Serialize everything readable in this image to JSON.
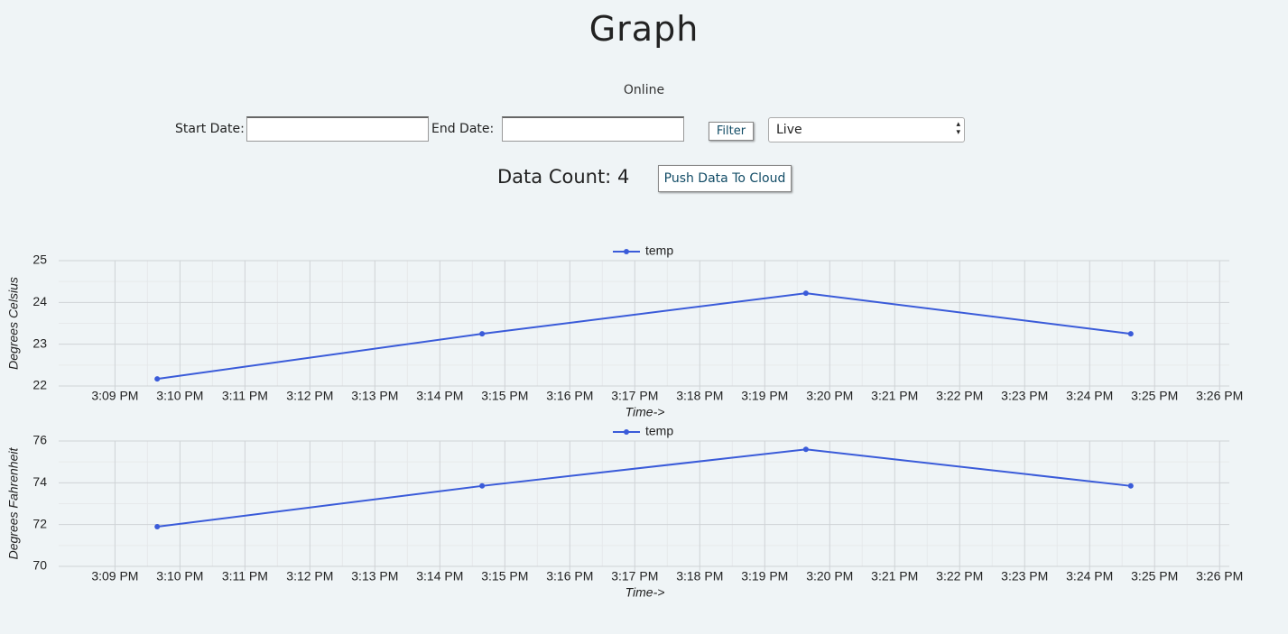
{
  "header": {
    "title": "Graph",
    "status": "Online"
  },
  "filters": {
    "start_label": "Start Date:",
    "end_label": "End Date:",
    "button": "Filter",
    "mode": "Live"
  },
  "data_count": {
    "label": "Data Count:",
    "value": 4
  },
  "push_button": "Push Data To Cloud",
  "chart_data": [
    {
      "type": "line",
      "y_label": "Degrees Celsius",
      "x_label": "Time->",
      "x": [
        "3:09:39 PM",
        "3:14:39 PM",
        "3:19:38 PM",
        "3:24:38 PM"
      ],
      "series": [
        {
          "name": "temp",
          "color": "#3a5bd9",
          "values": [
            22.17,
            23.25,
            24.22,
            23.25
          ]
        }
      ],
      "xlim": [
        "3:08:08 PM",
        "3:26:09 PM"
      ],
      "xticks": [
        "3:09 PM",
        "3:10 PM",
        "3:11 PM",
        "3:12 PM",
        "3:13 PM",
        "3:14 PM",
        "3:15 PM",
        "3:16 PM",
        "3:17 PM",
        "3:18 PM",
        "3:19 PM",
        "3:20 PM",
        "3:21 PM",
        "3:22 PM",
        "3:23 PM",
        "3:24 PM",
        "3:25 PM",
        "3:26 PM"
      ],
      "ylim": [
        22,
        25
      ],
      "yticks": [
        22,
        23,
        24,
        25
      ],
      "grid": true,
      "legend": "top"
    },
    {
      "type": "line",
      "y_label": "Degrees Fahrenheit",
      "x_label": "Time->",
      "x": [
        "3:09:39 PM",
        "3:14:39 PM",
        "3:19:38 PM",
        "3:24:38 PM"
      ],
      "series": [
        {
          "name": "temp",
          "color": "#3a5bd9",
          "values": [
            71.9,
            73.85,
            75.6,
            73.85
          ]
        }
      ],
      "xlim": [
        "3:08:08 PM",
        "3:26:09 PM"
      ],
      "xticks": [
        "3:09 PM",
        "3:10 PM",
        "3:11 PM",
        "3:12 PM",
        "3:13 PM",
        "3:14 PM",
        "3:15 PM",
        "3:16 PM",
        "3:17 PM",
        "3:18 PM",
        "3:19 PM",
        "3:20 PM",
        "3:21 PM",
        "3:22 PM",
        "3:23 PM",
        "3:24 PM",
        "3:25 PM",
        "3:26 PM"
      ],
      "ylim": [
        70,
        76
      ],
      "yticks": [
        70,
        72,
        74,
        76
      ],
      "grid": true,
      "legend": "top"
    }
  ]
}
